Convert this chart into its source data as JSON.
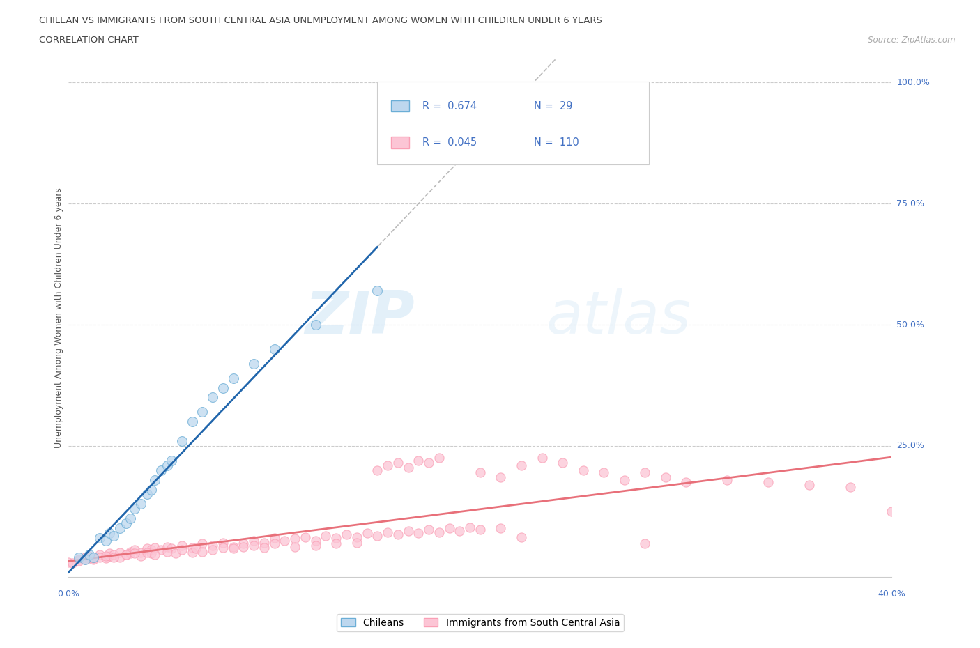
{
  "title_line1": "CHILEAN VS IMMIGRANTS FROM SOUTH CENTRAL ASIA UNEMPLOYMENT AMONG WOMEN WITH CHILDREN UNDER 6 YEARS",
  "title_line2": "CORRELATION CHART",
  "source_text": "Source: ZipAtlas.com",
  "ylabel": "Unemployment Among Women with Children Under 6 years",
  "xlim": [
    0.0,
    0.4
  ],
  "ylim": [
    -0.02,
    1.05
  ],
  "xtick_left_label": "0.0%",
  "xtick_right_label": "40.0%",
  "ytick_labels": [
    "100.0%",
    "75.0%",
    "50.0%",
    "25.0%"
  ],
  "ytick_values": [
    1.0,
    0.75,
    0.5,
    0.25
  ],
  "chilean_fill": "#bdd7ee",
  "chilean_edge": "#6baed6",
  "immigrant_fill": "#fcc5d5",
  "immigrant_edge": "#fa9fb5",
  "trend_chilean_color": "#2166ac",
  "trend_immigrant_color": "#e8707a",
  "legend_r_chilean": "0.674",
  "legend_n_chilean": "29",
  "legend_r_immigrant": "0.045",
  "legend_n_immigrant": "110",
  "legend_label_chilean": "Chileans",
  "legend_label_immigrant": "Immigrants from South Central Asia",
  "watermark_zip": "ZIP",
  "watermark_atlas": "atlas",
  "chilean_x": [
    0.005,
    0.008,
    0.01,
    0.012,
    0.015,
    0.018,
    0.02,
    0.022,
    0.025,
    0.028,
    0.03,
    0.032,
    0.035,
    0.038,
    0.04,
    0.042,
    0.045,
    0.048,
    0.05,
    0.055,
    0.06,
    0.065,
    0.07,
    0.075,
    0.08,
    0.09,
    0.1,
    0.12,
    0.15
  ],
  "chilean_y": [
    0.02,
    0.015,
    0.025,
    0.02,
    0.06,
    0.055,
    0.07,
    0.065,
    0.08,
    0.09,
    0.1,
    0.12,
    0.13,
    0.15,
    0.16,
    0.18,
    0.2,
    0.21,
    0.22,
    0.26,
    0.3,
    0.32,
    0.35,
    0.37,
    0.39,
    0.42,
    0.45,
    0.5,
    0.57
  ],
  "immigrant_x": [
    0.0,
    0.002,
    0.005,
    0.005,
    0.008,
    0.01,
    0.01,
    0.012,
    0.015,
    0.015,
    0.018,
    0.02,
    0.02,
    0.022,
    0.025,
    0.025,
    0.028,
    0.03,
    0.03,
    0.032,
    0.035,
    0.035,
    0.038,
    0.04,
    0.04,
    0.042,
    0.045,
    0.048,
    0.05,
    0.055,
    0.06,
    0.065,
    0.07,
    0.075,
    0.08,
    0.085,
    0.09,
    0.095,
    0.1,
    0.105,
    0.11,
    0.115,
    0.12,
    0.125,
    0.13,
    0.135,
    0.14,
    0.145,
    0.15,
    0.155,
    0.16,
    0.165,
    0.17,
    0.175,
    0.18,
    0.185,
    0.19,
    0.195,
    0.2,
    0.21,
    0.15,
    0.155,
    0.16,
    0.165,
    0.17,
    0.175,
    0.18,
    0.2,
    0.21,
    0.22,
    0.23,
    0.24,
    0.25,
    0.26,
    0.27,
    0.28,
    0.29,
    0.3,
    0.32,
    0.34,
    0.36,
    0.38,
    0.4,
    0.008,
    0.012,
    0.018,
    0.022,
    0.028,
    0.032,
    0.038,
    0.042,
    0.048,
    0.052,
    0.055,
    0.06,
    0.062,
    0.065,
    0.07,
    0.075,
    0.08,
    0.085,
    0.09,
    0.095,
    0.1,
    0.11,
    0.12,
    0.13,
    0.14,
    0.22,
    0.28
  ],
  "immigrant_y": [
    0.01,
    0.008,
    0.015,
    0.012,
    0.02,
    0.018,
    0.022,
    0.015,
    0.025,
    0.02,
    0.018,
    0.022,
    0.028,
    0.025,
    0.03,
    0.02,
    0.025,
    0.032,
    0.028,
    0.035,
    0.03,
    0.022,
    0.038,
    0.035,
    0.028,
    0.04,
    0.035,
    0.042,
    0.038,
    0.045,
    0.04,
    0.048,
    0.045,
    0.05,
    0.042,
    0.048,
    0.055,
    0.05,
    0.06,
    0.055,
    0.058,
    0.062,
    0.055,
    0.065,
    0.06,
    0.068,
    0.062,
    0.07,
    0.065,
    0.072,
    0.068,
    0.075,
    0.07,
    0.078,
    0.072,
    0.08,
    0.075,
    0.082,
    0.078,
    0.08,
    0.2,
    0.21,
    0.215,
    0.205,
    0.22,
    0.215,
    0.225,
    0.195,
    0.185,
    0.21,
    0.225,
    0.215,
    0.2,
    0.195,
    0.18,
    0.195,
    0.185,
    0.175,
    0.18,
    0.175,
    0.17,
    0.165,
    0.115,
    0.015,
    0.018,
    0.022,
    0.02,
    0.025,
    0.028,
    0.03,
    0.025,
    0.032,
    0.028,
    0.035,
    0.03,
    0.038,
    0.032,
    0.035,
    0.04,
    0.038,
    0.042,
    0.045,
    0.04,
    0.048,
    0.042,
    0.045,
    0.048,
    0.05,
    0.062,
    0.048
  ]
}
